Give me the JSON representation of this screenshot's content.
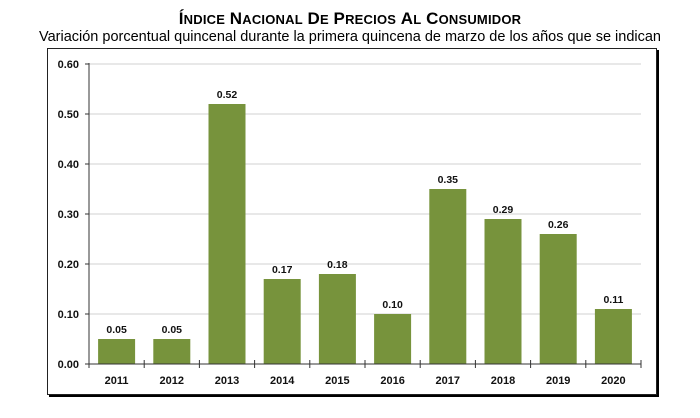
{
  "chart_data": {
    "type": "bar",
    "title": "Índice Nacional de Precios al Consumidor",
    "subtitle": "Variación porcentual quincenal durante la primera quincena de marzo de los años que se indican",
    "xlabel": "",
    "ylabel": "",
    "categories": [
      "2011",
      "2012",
      "2013",
      "2014",
      "2015",
      "2016",
      "2017",
      "2018",
      "2019",
      "2020"
    ],
    "values": [
      0.05,
      0.05,
      0.52,
      0.17,
      0.18,
      0.1,
      0.35,
      0.29,
      0.26,
      0.11
    ],
    "data_labels": [
      "0.05",
      "0.05",
      "0.52",
      "0.17",
      "0.18",
      "0.10",
      "0.35",
      "0.29",
      "0.26",
      "0.11"
    ],
    "ylim": [
      0,
      0.6
    ],
    "yticks": [
      0.0,
      0.1,
      0.2,
      0.3,
      0.4,
      0.5,
      0.6
    ],
    "ytick_labels": [
      "0.00",
      "0.10",
      "0.20",
      "0.30",
      "0.40",
      "0.50",
      "0.60"
    ],
    "grid": true,
    "legend": "none",
    "bar_color": "#77933c",
    "grid_color": "#d9d9d9"
  }
}
